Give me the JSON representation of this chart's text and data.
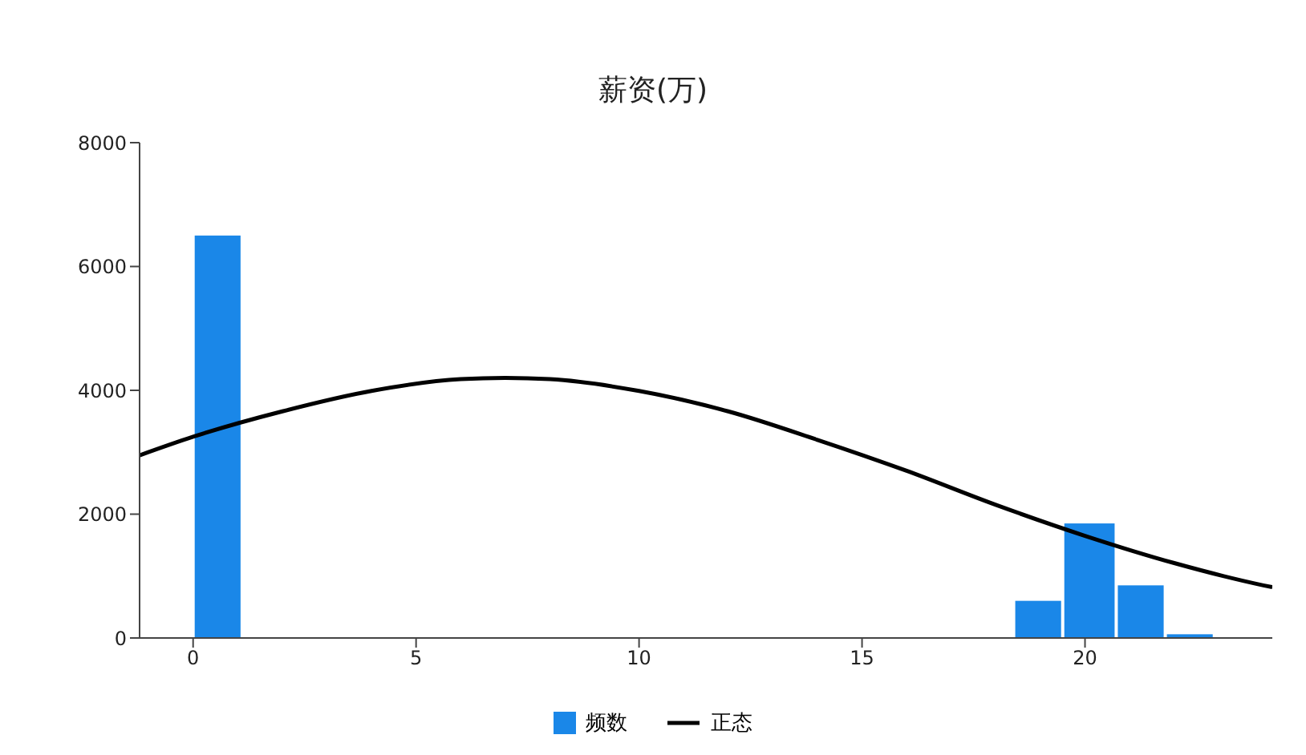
{
  "chart_data": {
    "type": "histogram",
    "title": "薪资(万)",
    "bins": [
      0,
      1.1,
      18.4,
      19.5,
      20.7,
      21.8,
      22.9
    ],
    "series": [
      {
        "name": "频数",
        "color": "#1a87e8",
        "values": [
          6500,
          0,
          600,
          1850,
          850,
          60
        ]
      },
      {
        "name": "正态",
        "type": "line",
        "color": "#000000",
        "x": [
          -1.2,
          0,
          2,
          4,
          6,
          7,
          8,
          10,
          12,
          14,
          16,
          18,
          20,
          22,
          24,
          24.2
        ],
        "values": [
          2950,
          3250,
          3660,
          3990,
          4180,
          4200,
          4180,
          3990,
          3660,
          3200,
          2700,
          2150,
          1650,
          1210,
          850,
          820
        ]
      }
    ],
    "xlim": [
      -1.2,
      24.2
    ],
    "xticks": [
      0,
      5,
      10,
      15,
      20
    ],
    "ylim": [
      0,
      8000
    ],
    "yticks": [
      0,
      2000,
      4000,
      6000,
      8000
    ],
    "grid": false,
    "legend": "bottom",
    "marker": "none",
    "line_style": "solid"
  }
}
